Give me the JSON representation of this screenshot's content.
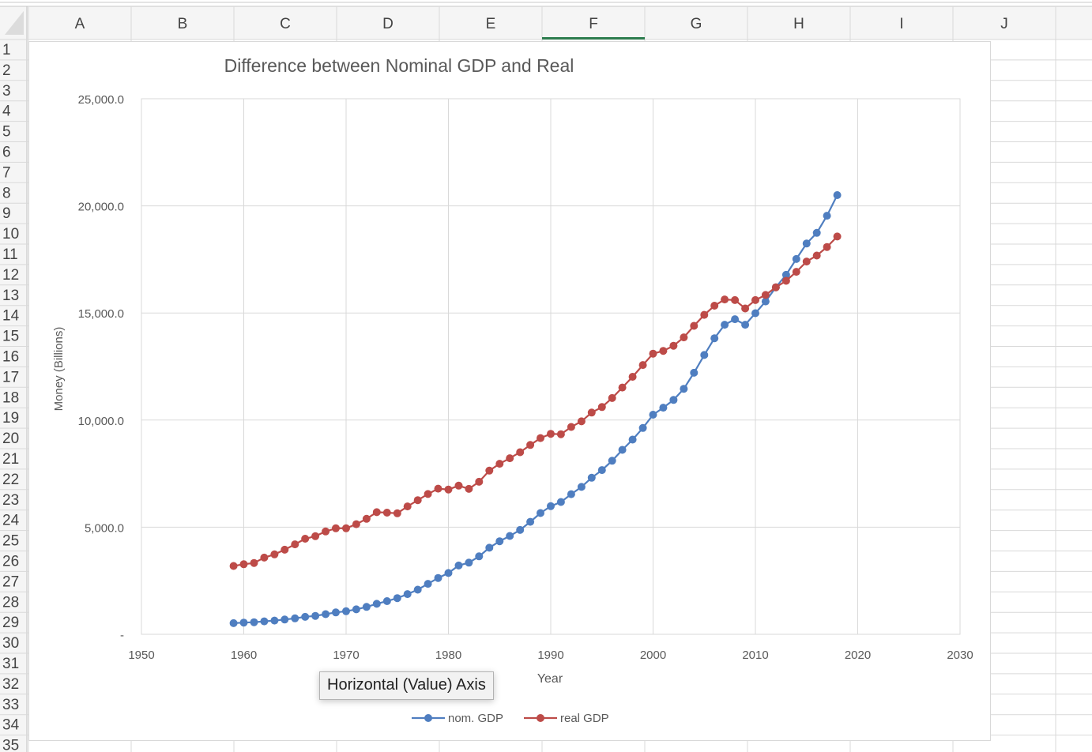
{
  "spreadsheet": {
    "columns": [
      "A",
      "B",
      "C",
      "D",
      "E",
      "F",
      "G",
      "H",
      "I",
      "J"
    ],
    "selected_column": "F",
    "rows": [
      "1",
      "2",
      "3",
      "4",
      "5",
      "6",
      "7",
      "8",
      "9",
      "10",
      "11",
      "12",
      "13",
      "14",
      "15",
      "16",
      "17",
      "18",
      "19",
      "20",
      "21",
      "22",
      "23",
      "24",
      "25",
      "26",
      "27",
      "28",
      "29",
      "30",
      "31",
      "32",
      "33",
      "34",
      "35"
    ],
    "colors": {
      "selected_accent": "#2e7d4f",
      "gridline": "#d9d9d9",
      "header_bg": "#f5f5f5"
    }
  },
  "tooltip": {
    "text": "Horizontal (Value) Axis"
  },
  "chart_data": {
    "type": "line",
    "title": "Difference between Nominal GDP and Real",
    "xlabel": "Year",
    "ylabel": "Money (Billions)",
    "xlim": [
      1950,
      2030
    ],
    "ylim": [
      0,
      25000
    ],
    "x_ticks": [
      1950,
      1960,
      1970,
      1980,
      1990,
      2000,
      2010,
      2020,
      2030
    ],
    "y_ticks": [
      0,
      5000,
      10000,
      15000,
      20000,
      25000
    ],
    "y_tick_labels": [
      "-",
      "5,000.0",
      "10,000.0",
      "15,000.0",
      "20,000.0",
      "25,000.0"
    ],
    "grid": true,
    "legend_position": "bottom",
    "x": [
      1959,
      1960,
      1961,
      1962,
      1963,
      1964,
      1965,
      1966,
      1967,
      1968,
      1969,
      1970,
      1971,
      1972,
      1973,
      1974,
      1975,
      1976,
      1977,
      1978,
      1979,
      1980,
      1981,
      1982,
      1983,
      1984,
      1985,
      1986,
      1987,
      1988,
      1989,
      1990,
      1991,
      1992,
      1993,
      1994,
      1995,
      1996,
      1997,
      1998,
      1999,
      2000,
      2001,
      2002,
      2003,
      2004,
      2005,
      2006,
      2007,
      2008,
      2009,
      2010,
      2011,
      2012,
      2013,
      2014,
      2015,
      2016,
      2017,
      2018
    ],
    "series": [
      {
        "name": "nom. GDP",
        "color": "#4f7ec0",
        "values": [
          520,
          545,
          565,
          605,
          640,
          690,
          745,
          815,
          860,
          940,
          1020,
          1075,
          1165,
          1280,
          1425,
          1550,
          1690,
          1875,
          2085,
          2355,
          2630,
          2860,
          3210,
          3345,
          3640,
          4040,
          4345,
          4590,
          4870,
          5250,
          5660,
          5980,
          6175,
          6540,
          6880,
          7310,
          7665,
          8100,
          8610,
          9090,
          9630,
          10250,
          10580,
          10940,
          11460,
          12210,
          13040,
          13820,
          14450,
          14710,
          14450,
          14990,
          15540,
          16200,
          16780,
          17520,
          18240,
          18740,
          19540,
          20500
        ]
      },
      {
        "name": "real GDP",
        "color": "#bd4b48",
        "values": [
          3190,
          3270,
          3330,
          3580,
          3730,
          3950,
          4200,
          4460,
          4580,
          4800,
          4950,
          4950,
          5140,
          5390,
          5700,
          5680,
          5650,
          5970,
          6260,
          6550,
          6800,
          6760,
          6940,
          6790,
          7120,
          7640,
          7960,
          8220,
          8500,
          8840,
          9160,
          9360,
          9340,
          9680,
          9940,
          10350,
          10610,
          11030,
          11520,
          12020,
          12570,
          13100,
          13230,
          13470,
          13860,
          14400,
          14910,
          15340,
          15630,
          15600,
          15210,
          15600,
          15840,
          16200,
          16500,
          16920,
          17400,
          17680,
          18080,
          18570
        ]
      }
    ]
  }
}
